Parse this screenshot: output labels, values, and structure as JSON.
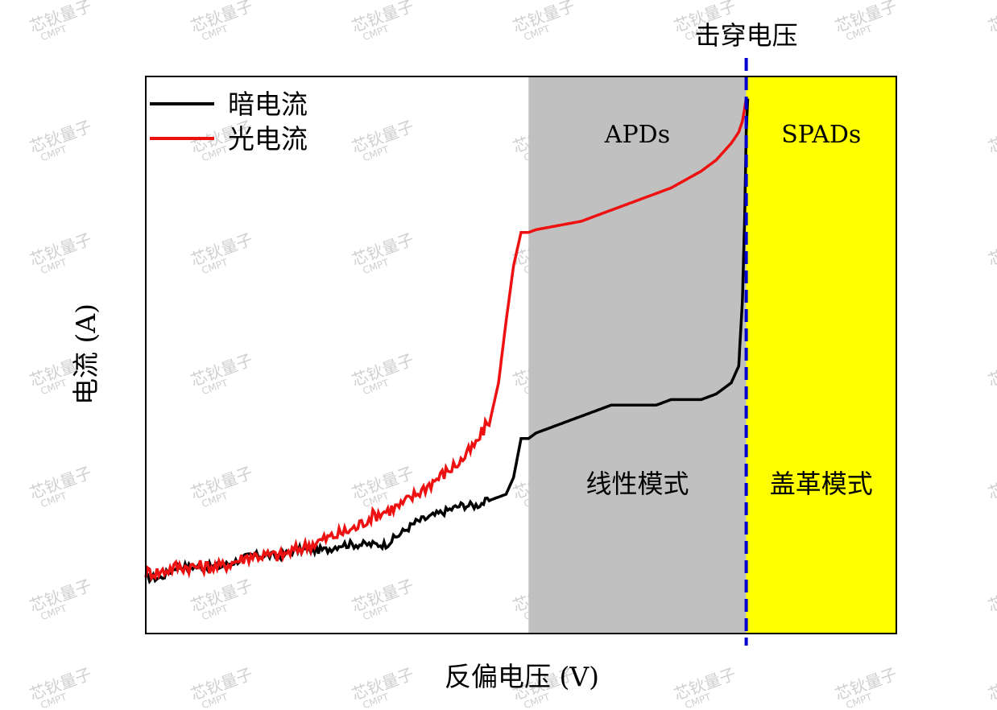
{
  "watermark": {
    "text": "芯钬量子",
    "subtext": "CMPT"
  },
  "chart_data": {
    "type": "line",
    "title": "",
    "xlabel": "反偏电压 (V)",
    "ylabel": "电流 (A)",
    "x_ticks_shown": false,
    "y_ticks_shown": false,
    "grid": false,
    "legend_position": "top-left",
    "xlim": [
      0,
      100
    ],
    "ylim": [
      0,
      100
    ],
    "series": [
      {
        "name": "暗电流",
        "color": "#000000",
        "points": [
          [
            0,
            10
          ],
          [
            2,
            10
          ],
          [
            4,
            12
          ],
          [
            6,
            12
          ],
          [
            8,
            12
          ],
          [
            10,
            12
          ],
          [
            12,
            13
          ],
          [
            14,
            14
          ],
          [
            16,
            14
          ],
          [
            18,
            14
          ],
          [
            20,
            15
          ],
          [
            22,
            15
          ],
          [
            24,
            15
          ],
          [
            26,
            16
          ],
          [
            28,
            16
          ],
          [
            30,
            16
          ],
          [
            32,
            16
          ],
          [
            34,
            18
          ],
          [
            36,
            20
          ],
          [
            38,
            21
          ],
          [
            40,
            22
          ],
          [
            42,
            23
          ],
          [
            44,
            23
          ],
          [
            46,
            24
          ],
          [
            48,
            25
          ],
          [
            49,
            28
          ],
          [
            50,
            35
          ],
          [
            51,
            35
          ],
          [
            52,
            36
          ],
          [
            54,
            37
          ],
          [
            56,
            38
          ],
          [
            58,
            39
          ],
          [
            60,
            40
          ],
          [
            62,
            41
          ],
          [
            64,
            41
          ],
          [
            66,
            41
          ],
          [
            68,
            41
          ],
          [
            70,
            42
          ],
          [
            72,
            42
          ],
          [
            74,
            42
          ],
          [
            76,
            43
          ],
          [
            77,
            44
          ],
          [
            78,
            45
          ],
          [
            79,
            48
          ],
          [
            79.5,
            60
          ],
          [
            79.8,
            75
          ],
          [
            80,
            90
          ],
          [
            80.2,
            96
          ]
        ]
      },
      {
        "name": "光电流",
        "color": "#ee1111",
        "points": [
          [
            0,
            11
          ],
          [
            2,
            11
          ],
          [
            4,
            12
          ],
          [
            6,
            12
          ],
          [
            8,
            12
          ],
          [
            10,
            12
          ],
          [
            12,
            13
          ],
          [
            14,
            14
          ],
          [
            16,
            14
          ],
          [
            18,
            14
          ],
          [
            20,
            15
          ],
          [
            22,
            16
          ],
          [
            24,
            17
          ],
          [
            26,
            18
          ],
          [
            28,
            19
          ],
          [
            30,
            21
          ],
          [
            32,
            22
          ],
          [
            34,
            23
          ],
          [
            36,
            25
          ],
          [
            38,
            27
          ],
          [
            40,
            29
          ],
          [
            42,
            31
          ],
          [
            44,
            34
          ],
          [
            46,
            39
          ],
          [
            47,
            45
          ],
          [
            48,
            56
          ],
          [
            49,
            66
          ],
          [
            50,
            72
          ],
          [
            51,
            72
          ],
          [
            52,
            72.5
          ],
          [
            54,
            73
          ],
          [
            56,
            73.5
          ],
          [
            58,
            74
          ],
          [
            60,
            75
          ],
          [
            62,
            76
          ],
          [
            64,
            77
          ],
          [
            66,
            78
          ],
          [
            68,
            79
          ],
          [
            70,
            80
          ],
          [
            72,
            81.5
          ],
          [
            74,
            83
          ],
          [
            76,
            85
          ],
          [
            77,
            86.5
          ],
          [
            78,
            88
          ],
          [
            79,
            90
          ],
          [
            79.5,
            92
          ],
          [
            80,
            96
          ]
        ]
      }
    ],
    "regions": [
      {
        "label": "APDs",
        "mode_label": "线性模式",
        "x_range": [
          51,
          80
        ],
        "color": "#c0c0c0"
      },
      {
        "label": "SPADs",
        "mode_label": "盖革模式",
        "x_range": [
          80,
          100
        ],
        "color": "#ffff00"
      }
    ],
    "vline": {
      "x": 80,
      "label": "击穿电压",
      "color": "#0000cc",
      "style": "dashed"
    }
  }
}
